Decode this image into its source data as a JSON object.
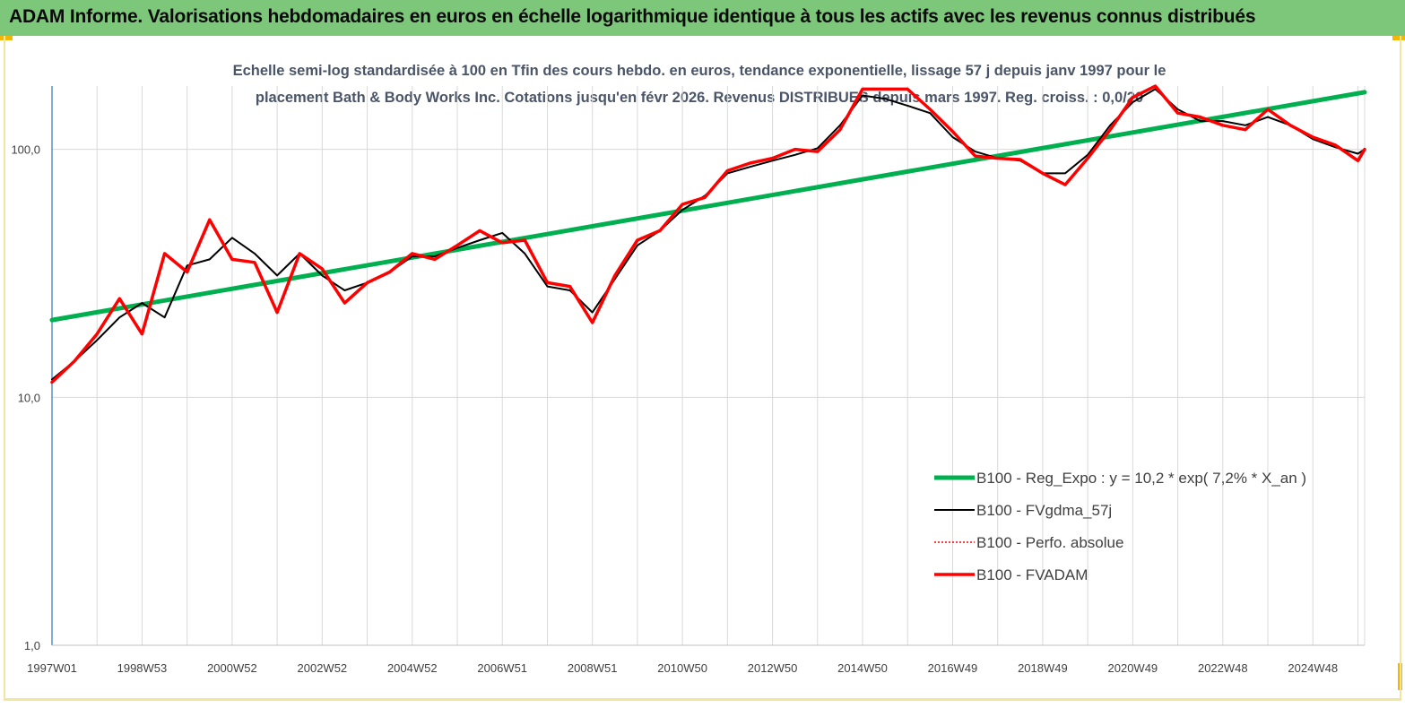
{
  "banner": {
    "title": "ADAM Informe. Valorisations hebdomadaires en euros en échelle logarithmique identique à tous les actifs avec les revenus connus distribués"
  },
  "chart_data": {
    "type": "line",
    "title_lines": [
      "Echelle semi-log standardisée à 100 en Tfin des cours hebdo. en euros, tendance exponentielle, lissage 57 j depuis janv 1997 pour le",
      "placement Bath & Body Works Inc. Cotations jusqu'en févr 2026. Revenus DISTRIBUES depuis mars 1997. Reg. croiss. : 0,0/20"
    ],
    "y_scale": "log",
    "ylim": [
      1,
      180
    ],
    "y_ticks": [
      {
        "value": 1,
        "label": "1,0"
      },
      {
        "value": 10,
        "label": "10,0"
      },
      {
        "value": 100,
        "label": "100,0"
      }
    ],
    "x_range": [
      1997.0,
      2026.15
    ],
    "x_ticks": [
      {
        "value": 1997.0,
        "label": "1997W01"
      },
      {
        "value": 1999.0,
        "label": "1998W53"
      },
      {
        "value": 2001.0,
        "label": "2000W52"
      },
      {
        "value": 2003.0,
        "label": "2002W52"
      },
      {
        "value": 2005.0,
        "label": "2004W52"
      },
      {
        "value": 2007.0,
        "label": "2006W51"
      },
      {
        "value": 2009.0,
        "label": "2008W51"
      },
      {
        "value": 2011.0,
        "label": "2010W50"
      },
      {
        "value": 2013.0,
        "label": "2012W50"
      },
      {
        "value": 2015.0,
        "label": "2014W50"
      },
      {
        "value": 2017.0,
        "label": "2016W49"
      },
      {
        "value": 2019.0,
        "label": "2018W49"
      },
      {
        "value": 2021.0,
        "label": "2020W49"
      },
      {
        "value": 2023.0,
        "label": "2022W48"
      },
      {
        "value": 2025.0,
        "label": "2024W48"
      }
    ],
    "grid": "vertical",
    "legend_position": "bottom-right",
    "series": [
      {
        "name": "B100 - Reg_Expo : y = 10,2 * exp( 7,2% *  X_an )",
        "color": "#00b050",
        "style": "solid",
        "width": 5,
        "x": [
          1997.0,
          2026.15
        ],
        "y": [
          20.5,
          170
        ]
      },
      {
        "name": "B100 - FVgdma_57j",
        "color": "#000000",
        "style": "solid",
        "width": 2,
        "x": [
          1997.0,
          1997.5,
          1998.0,
          1998.5,
          1999.0,
          1999.5,
          2000.0,
          2000.5,
          2001.0,
          2001.5,
          2002.0,
          2002.5,
          2003.0,
          2003.5,
          2004.0,
          2004.5,
          2005.0,
          2005.5,
          2006.0,
          2006.5,
          2007.0,
          2007.5,
          2008.0,
          2008.5,
          2009.0,
          2009.5,
          2010.0,
          2010.5,
          2011.0,
          2011.5,
          2012.0,
          2012.5,
          2013.0,
          2013.5,
          2014.0,
          2014.5,
          2015.0,
          2015.5,
          2016.0,
          2016.5,
          2017.0,
          2017.5,
          2018.0,
          2018.5,
          2019.0,
          2019.5,
          2020.0,
          2020.5,
          2021.0,
          2021.5,
          2022.0,
          2022.5,
          2023.0,
          2023.5,
          2024.0,
          2024.5,
          2025.0,
          2025.5,
          2026.0,
          2026.15
        ],
        "y": [
          11.8,
          14,
          17,
          21,
          24,
          21,
          34,
          36,
          44,
          38,
          31,
          38,
          31,
          27,
          29,
          32,
          37,
          37,
          40,
          43,
          46,
          38,
          28,
          27,
          22,
          30,
          41,
          47,
          57,
          65,
          80,
          85,
          90,
          95,
          101,
          125,
          165,
          160,
          150,
          140,
          112,
          98,
          92,
          90,
          80,
          80,
          95,
          125,
          155,
          175,
          145,
          130,
          130,
          125,
          135,
          125,
          110,
          102,
          96,
          100
        ]
      },
      {
        "name": "B100 - Perfo. absolue",
        "color": "#ff0000",
        "style": "dotted",
        "width": 1.5,
        "x": [
          1997.0,
          1997.5,
          1998.0,
          1998.5,
          1999.0,
          1999.5,
          2000.0,
          2000.5,
          2001.0,
          2001.5,
          2002.0,
          2002.5,
          2003.0,
          2003.5,
          2004.0,
          2004.5,
          2005.0,
          2005.5,
          2006.0,
          2006.5,
          2007.0,
          2007.5,
          2008.0,
          2008.5,
          2009.0,
          2009.5,
          2010.0,
          2010.5,
          2011.0,
          2011.5,
          2012.0,
          2012.5,
          2013.0,
          2013.5,
          2014.0,
          2014.5,
          2015.0,
          2015.5,
          2016.0,
          2016.5,
          2017.0,
          2017.5,
          2018.0,
          2018.5,
          2019.0,
          2019.5,
          2020.0,
          2020.5,
          2021.0,
          2021.5,
          2022.0,
          2022.5,
          2023.0,
          2023.5,
          2024.0,
          2024.5,
          2025.0,
          2025.5,
          2026.0,
          2026.15
        ],
        "y": [
          11.5,
          14,
          18,
          25,
          18,
          38,
          32,
          52,
          36,
          35,
          22,
          38,
          33,
          24,
          29,
          32,
          38,
          36,
          41,
          47,
          42,
          43,
          29,
          28,
          20,
          31,
          43,
          47,
          60,
          64,
          82,
          88,
          92,
          100,
          98,
          120,
          175,
          175,
          175,
          145,
          118,
          94,
          92,
          91,
          80,
          72,
          92,
          120,
          162,
          180,
          140,
          135,
          125,
          120,
          145,
          125,
          112,
          104,
          90,
          100
        ]
      },
      {
        "name": "B100 - FVADAM",
        "color": "#ff0000",
        "style": "solid",
        "width": 3.5,
        "x": [
          1997.0,
          1997.5,
          1998.0,
          1998.5,
          1999.0,
          1999.5,
          2000.0,
          2000.5,
          2001.0,
          2001.5,
          2002.0,
          2002.5,
          2003.0,
          2003.5,
          2004.0,
          2004.5,
          2005.0,
          2005.5,
          2006.0,
          2006.5,
          2007.0,
          2007.5,
          2008.0,
          2008.5,
          2009.0,
          2009.5,
          2010.0,
          2010.5,
          2011.0,
          2011.5,
          2012.0,
          2012.5,
          2013.0,
          2013.5,
          2014.0,
          2014.5,
          2015.0,
          2015.5,
          2016.0,
          2016.5,
          2017.0,
          2017.5,
          2018.0,
          2018.5,
          2019.0,
          2019.5,
          2020.0,
          2020.5,
          2021.0,
          2021.5,
          2022.0,
          2022.5,
          2023.0,
          2023.5,
          2024.0,
          2024.5,
          2025.0,
          2025.5,
          2026.0,
          2026.15
        ],
        "y": [
          11.5,
          14,
          18,
          25,
          18,
          38,
          32,
          52,
          36,
          35,
          22,
          38,
          33,
          24,
          29,
          32,
          38,
          36,
          41,
          47,
          42,
          43,
          29,
          28,
          20,
          31,
          43,
          47,
          60,
          64,
          82,
          88,
          92,
          100,
          98,
          120,
          175,
          175,
          175,
          145,
          118,
          94,
          92,
          91,
          80,
          72,
          92,
          120,
          162,
          180,
          140,
          135,
          125,
          120,
          145,
          125,
          112,
          104,
          90,
          100
        ]
      }
    ]
  }
}
